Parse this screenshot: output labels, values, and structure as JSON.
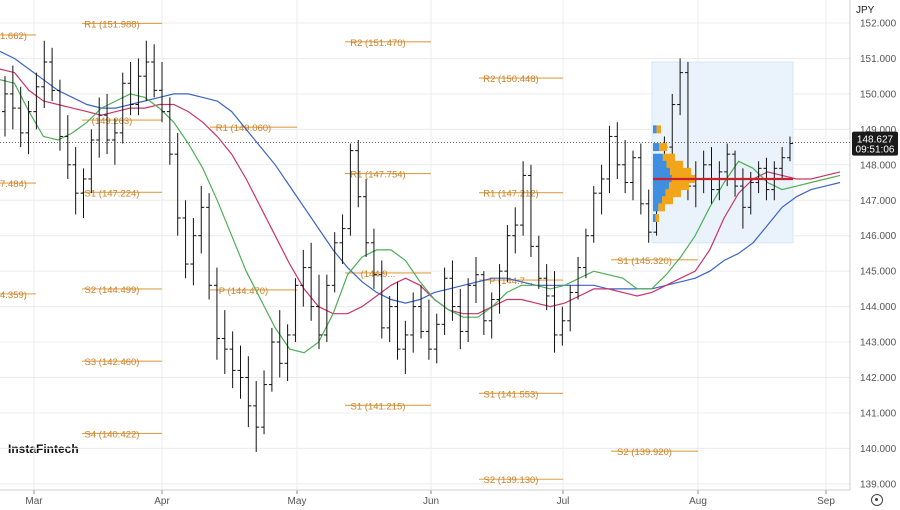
{
  "symbol": "JPY",
  "brand": "InstaFintech",
  "current_price": "148.627",
  "countdown": "09:51:06",
  "chart_data": {
    "type": "line",
    "x_months": [
      "Mar",
      "Apr",
      "May",
      "Jun",
      "Jul",
      "Aug",
      "Sep"
    ],
    "y_ticks": [
      "152.000",
      "151.000",
      "150.000",
      "149.000",
      "148.000",
      "147.000",
      "146.000",
      "145.000",
      "144.000",
      "143.000",
      "142.000",
      "141.000",
      "140.000",
      "139.000"
    ],
    "ylim": [
      138.8,
      152.4
    ],
    "pivot_levels": [
      {
        "label": "R1 (151.988)",
        "value": 151.988,
        "period": "Apr"
      },
      {
        "label": "1.662)",
        "value": 151.662,
        "period": "Mar"
      },
      {
        "label": "R2 (151.470)",
        "value": 151.47,
        "period": "Jun"
      },
      {
        "label": "R2 (150.448)",
        "value": 150.448,
        "period": "Jul"
      },
      {
        "label": "(149.263)",
        "value": 149.263,
        "period": "Apr"
      },
      {
        "label": "R1 (149.060)",
        "value": 149.06,
        "period": "May"
      },
      {
        "label": "R1 (147.754)",
        "value": 147.754,
        "period": "Jun"
      },
      {
        "label": "7.484)",
        "value": 147.484,
        "period": "Mar"
      },
      {
        "label": "S1 (147.224)",
        "value": 147.224,
        "period": "Apr"
      },
      {
        "label": "R1 (147.212)",
        "value": 147.212,
        "period": "Jul"
      },
      {
        "label": "S1 (145.320)",
        "value": 145.32,
        "period": "Aug"
      },
      {
        "label": "(144.9...",
        "value": 144.95,
        "period": "Jun"
      },
      {
        "label": "P (144.7...",
        "value": 144.75,
        "period": "Jul"
      },
      {
        "label": "S2 (144.499)",
        "value": 144.499,
        "period": "Apr"
      },
      {
        "label": "P (144.470)",
        "value": 144.47,
        "period": "May"
      },
      {
        "label": "4.359)",
        "value": 144.359,
        "period": "Mar"
      },
      {
        "label": "S3 (142.460)",
        "value": 142.46,
        "period": "Apr"
      },
      {
        "label": "S1 (141.553)",
        "value": 141.553,
        "period": "Jul"
      },
      {
        "label": "S1 (141.215)",
        "value": 141.215,
        "period": "Jun"
      },
      {
        "label": "S4 (140.422)",
        "value": 140.422,
        "period": "Apr"
      },
      {
        "label": "S2 (139.920)",
        "value": 139.92,
        "period": "Aug"
      },
      {
        "label": "S2 (139.130)",
        "value": 139.13,
        "period": "Jul"
      }
    ],
    "last_price": 148.627,
    "bars": [
      [
        149.5,
        150.5,
        148.8,
        150.0
      ],
      [
        150.0,
        150.8,
        149.0,
        149.6
      ],
      [
        149.6,
        150.2,
        148.5,
        148.9
      ],
      [
        148.9,
        149.8,
        148.3,
        149.5
      ],
      [
        149.5,
        150.6,
        149.0,
        150.2
      ],
      [
        150.2,
        151.5,
        149.6,
        150.9
      ],
      [
        150.9,
        151.3,
        149.8,
        150.1
      ],
      [
        150.1,
        150.4,
        148.4,
        148.8
      ],
      [
        148.8,
        149.4,
        147.6,
        148.0
      ],
      [
        148.0,
        148.5,
        146.6,
        147.2
      ],
      [
        147.2,
        147.9,
        146.5,
        147.6
      ],
      [
        147.6,
        149.0,
        147.2,
        148.7
      ],
      [
        148.7,
        149.9,
        148.2,
        149.4
      ],
      [
        149.4,
        150.0,
        148.3,
        148.7
      ],
      [
        148.7,
        149.3,
        148.0,
        148.9
      ],
      [
        148.9,
        150.6,
        148.6,
        150.3
      ],
      [
        150.3,
        150.9,
        149.4,
        149.7
      ],
      [
        149.7,
        151.0,
        149.4,
        150.5
      ],
      [
        150.5,
        151.5,
        149.8,
        150.9
      ],
      [
        150.9,
        151.4,
        149.9,
        150.1
      ],
      [
        150.1,
        150.9,
        149.2,
        149.5
      ],
      [
        149.5,
        149.9,
        148.0,
        148.3
      ],
      [
        148.3,
        148.9,
        146.0,
        146.5
      ],
      [
        146.5,
        147.0,
        144.8,
        145.2
      ],
      [
        145.2,
        146.5,
        144.6,
        146.0
      ],
      [
        146.0,
        147.4,
        145.5,
        146.8
      ],
      [
        146.8,
        147.2,
        144.2,
        144.6
      ],
      [
        144.6,
        145.1,
        142.5,
        143.1
      ],
      [
        143.1,
        143.9,
        142.1,
        142.8
      ],
      [
        142.8,
        143.3,
        141.7,
        142.2
      ],
      [
        142.2,
        142.9,
        141.4,
        142.0
      ],
      [
        142.0,
        142.6,
        140.6,
        141.2
      ],
      [
        141.2,
        141.9,
        139.9,
        140.6
      ],
      [
        140.6,
        142.2,
        140.4,
        141.8
      ],
      [
        141.8,
        143.4,
        141.6,
        143.0
      ],
      [
        143.0,
        143.9,
        142.0,
        142.4
      ],
      [
        142.4,
        143.5,
        141.9,
        143.2
      ],
      [
        143.2,
        144.8,
        143.0,
        144.6
      ],
      [
        144.6,
        145.6,
        144.0,
        145.1
      ],
      [
        145.1,
        145.8,
        143.6,
        144.0
      ],
      [
        144.0,
        144.9,
        142.8,
        143.2
      ],
      [
        143.2,
        144.9,
        143.0,
        144.6
      ],
      [
        144.6,
        146.1,
        144.4,
        145.8
      ],
      [
        145.8,
        146.6,
        145.2,
        146.2
      ],
      [
        146.2,
        148.6,
        146.0,
        148.4
      ],
      [
        148.4,
        148.7,
        146.8,
        147.1
      ],
      [
        147.1,
        147.6,
        145.4,
        145.8
      ],
      [
        145.8,
        146.2,
        144.5,
        144.9
      ],
      [
        144.9,
        145.3,
        143.1,
        143.4
      ],
      [
        143.4,
        144.3,
        143.0,
        144.0
      ],
      [
        144.0,
        144.7,
        142.5,
        142.8
      ],
      [
        142.8,
        143.6,
        142.1,
        143.2
      ],
      [
        143.2,
        144.4,
        142.7,
        144.0
      ],
      [
        144.0,
        144.6,
        143.1,
        143.3
      ],
      [
        143.3,
        144.2,
        142.5,
        142.8
      ],
      [
        142.8,
        143.8,
        142.4,
        143.5
      ],
      [
        143.5,
        145.1,
        143.2,
        144.8
      ],
      [
        144.8,
        145.3,
        143.6,
        144.0
      ],
      [
        144.0,
        144.5,
        142.8,
        143.3
      ],
      [
        143.3,
        144.8,
        143.0,
        144.6
      ],
      [
        144.6,
        145.4,
        144.1,
        144.9
      ],
      [
        144.9,
        145.0,
        143.2,
        143.6
      ],
      [
        143.6,
        144.4,
        143.1,
        144.2
      ],
      [
        144.2,
        145.2,
        143.8,
        145.0
      ],
      [
        145.0,
        146.3,
        144.7,
        146.0
      ],
      [
        146.0,
        146.8,
        145.5,
        146.3
      ],
      [
        146.3,
        148.1,
        146.0,
        147.7
      ],
      [
        147.7,
        148.0,
        145.4,
        145.7
      ],
      [
        145.7,
        146.0,
        144.5,
        144.8
      ],
      [
        144.8,
        145.2,
        143.9,
        144.3
      ],
      [
        144.3,
        145.0,
        142.7,
        143.2
      ],
      [
        143.2,
        144.0,
        142.9,
        143.6
      ],
      [
        143.6,
        144.6,
        143.3,
        144.4
      ],
      [
        144.4,
        145.4,
        144.2,
        145.1
      ],
      [
        145.1,
        146.2,
        144.8,
        146.0
      ],
      [
        146.0,
        147.4,
        145.8,
        147.2
      ],
      [
        147.2,
        148.0,
        146.6,
        147.6
      ],
      [
        147.6,
        149.1,
        147.2,
        148.8
      ],
      [
        148.8,
        149.2,
        147.6,
        148.0
      ],
      [
        148.0,
        148.7,
        147.2,
        147.5
      ],
      [
        147.5,
        148.4,
        147.0,
        148.2
      ],
      [
        148.2,
        148.6,
        146.6,
        146.9
      ],
      [
        146.9,
        147.3,
        145.8,
        146.1
      ],
      [
        146.1,
        147.9,
        146.0,
        147.6
      ],
      [
        147.6,
        148.8,
        147.4,
        148.5
      ],
      [
        148.5,
        150.0,
        148.2,
        149.7
      ],
      [
        149.7,
        151.0,
        149.4,
        150.6
      ],
      [
        150.6,
        150.9,
        147.0,
        147.4
      ],
      [
        147.4,
        148.1,
        146.8,
        147.6
      ],
      [
        147.6,
        148.4,
        147.2,
        148.0
      ],
      [
        148.0,
        148.5,
        146.9,
        147.3
      ],
      [
        147.3,
        148.1,
        147.0,
        147.8
      ],
      [
        147.8,
        148.6,
        147.4,
        148.3
      ],
      [
        148.3,
        148.4,
        147.1,
        147.4
      ],
      [
        147.4,
        147.9,
        146.2,
        146.8
      ],
      [
        146.8,
        147.8,
        146.6,
        147.5
      ],
      [
        147.5,
        148.1,
        147.2,
        147.9
      ],
      [
        147.9,
        148.2,
        147.0,
        147.3
      ],
      [
        147.3,
        148.1,
        147.0,
        147.9
      ],
      [
        147.9,
        148.5,
        147.6,
        148.2
      ],
      [
        148.2,
        148.8,
        148.1,
        148.6
      ]
    ],
    "ma_blue": [
      151.2,
      151.0,
      150.7,
      150.4,
      150.1,
      149.9,
      149.7,
      149.6,
      149.6,
      149.7,
      149.8,
      149.9,
      150.0,
      150.0,
      149.9,
      149.8,
      149.5,
      149.0,
      148.5,
      148.0,
      147.4,
      146.8,
      146.2,
      145.6,
      145.1,
      144.7,
      144.4,
      144.2,
      144.1,
      144.2,
      144.4,
      144.5,
      144.6,
      144.7,
      144.8,
      144.8,
      144.7,
      144.6,
      144.6,
      144.6,
      144.6,
      144.6,
      144.5,
      144.5,
      144.5,
      144.5,
      144.6,
      144.7,
      144.8,
      145.0,
      145.3,
      145.5,
      145.8,
      146.3,
      146.8,
      147.1,
      147.3,
      147.4,
      147.5
    ],
    "ma_red": [
      150.7,
      150.6,
      150.1,
      149.8,
      149.7,
      149.6,
      149.5,
      149.4,
      149.5,
      149.6,
      149.6,
      149.7,
      149.7,
      149.5,
      149.2,
      148.8,
      148.3,
      147.6,
      146.8,
      146.0,
      145.2,
      144.5,
      144.0,
      143.8,
      143.8,
      144.0,
      144.3,
      144.6,
      144.8,
      144.6,
      144.2,
      143.9,
      143.8,
      143.8,
      144.0,
      144.2,
      144.2,
      144.1,
      144.0,
      144.1,
      144.3,
      144.5,
      144.5,
      144.4,
      144.3,
      144.4,
      144.6,
      144.8,
      145.0,
      145.6,
      146.5,
      147.2,
      147.6,
      147.8,
      147.7,
      147.6,
      147.6,
      147.7,
      147.8
    ],
    "ma_green": [
      150.4,
      150.3,
      149.5,
      148.8,
      148.7,
      148.9,
      149.2,
      149.6,
      149.8,
      150.0,
      149.9,
      149.6,
      149.2,
      148.6,
      147.9,
      147.0,
      146.0,
      145.0,
      144.2,
      143.4,
      142.8,
      142.7,
      143.0,
      143.8,
      144.9,
      145.4,
      145.6,
      145.6,
      145.3,
      144.7,
      144.2,
      143.9,
      143.7,
      143.7,
      144.0,
      144.4,
      144.6,
      144.6,
      144.5,
      144.6,
      144.8,
      145.0,
      144.9,
      144.8,
      144.5,
      144.5,
      144.9,
      145.4,
      146.0,
      146.8,
      147.5,
      148.1,
      147.9,
      147.5,
      147.3,
      147.4,
      147.5,
      147.6,
      147.7
    ],
    "pivot_line": 147.6
  }
}
